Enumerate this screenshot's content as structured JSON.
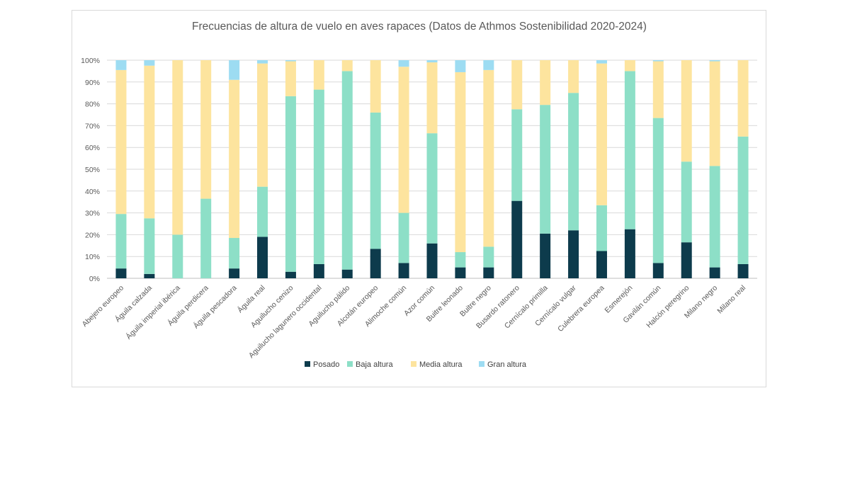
{
  "chart_data": {
    "type": "bar",
    "stacked": "percent",
    "title": "Frecuencias de altura de vuelo en aves rapaces (Datos de Athmos Sostenibilidad 2020-2024)",
    "xlabel": "",
    "ylabel": "",
    "ylim": [
      0,
      100
    ],
    "y_ticks": [
      "0%",
      "10%",
      "20%",
      "30%",
      "40%",
      "50%",
      "60%",
      "70%",
      "80%",
      "90%",
      "100%"
    ],
    "grid": true,
    "legend_position": "bottom",
    "categories": [
      "Abejero europeo",
      "Águila calzada",
      "Águila imperial ibérica",
      "Águila perdicera",
      "Águila pescadora",
      "Águila real",
      "Aguilucho cenizo",
      "Aguilucho lagunero occidental",
      "Aguilucho pálido",
      "Alcotán europeo",
      "Alimoche común",
      "Azor común",
      "Buitre leonado",
      "Buitre negro",
      "Busardo ratonero",
      "Cernícalo primilla",
      "Cernícalo vulgar",
      "Culebrera europea",
      "Esmerejón",
      "Gavilán común",
      "Halcón peregrino",
      "Milano negro",
      "Milano real"
    ],
    "series": [
      {
        "name": "Posado",
        "color": "#0d3b4c",
        "values": [
          4.5,
          2,
          0,
          0,
          4.5,
          19,
          3,
          6.5,
          4,
          13.5,
          7,
          16,
          5,
          5,
          35.5,
          20.5,
          22,
          12.5,
          22.5,
          7,
          16.5,
          5,
          6.5
        ]
      },
      {
        "name": "Baja altura",
        "color": "#8ddfc7",
        "values": [
          25,
          25.5,
          20,
          36.5,
          14,
          23,
          80.5,
          80,
          91,
          62.5,
          23,
          50.5,
          7,
          9.5,
          42,
          59,
          63,
          21,
          72.5,
          66.5,
          37,
          46.5,
          58.5
        ]
      },
      {
        "name": "Media altura",
        "color": "#fde49e",
        "values": [
          66,
          70,
          80,
          63.5,
          72.5,
          56.5,
          16,
          13.5,
          5,
          24,
          67,
          32.5,
          82.5,
          81,
          22.5,
          20.5,
          15,
          65,
          5,
          26,
          46.5,
          48,
          35
        ]
      },
      {
        "name": "Gran altura",
        "color": "#9ddcf2",
        "values": [
          4.5,
          2.5,
          0,
          0,
          9,
          1.5,
          0.5,
          0,
          0,
          0,
          3,
          1,
          5.5,
          4.5,
          0,
          0,
          0,
          1.5,
          0,
          0.5,
          0,
          0.5,
          0
        ]
      }
    ]
  }
}
